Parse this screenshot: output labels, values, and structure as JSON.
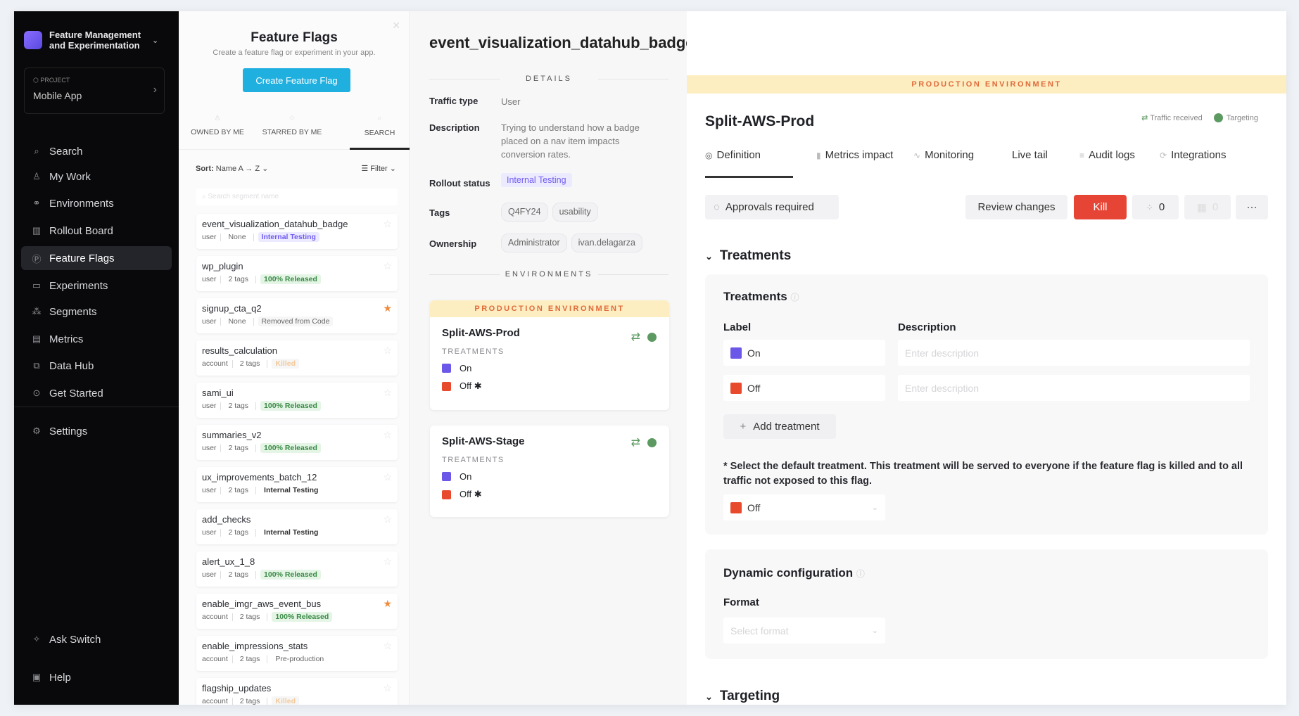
{
  "sidebar": {
    "app_name_line1": "Feature Management",
    "app_name_line2": "and Experimentation",
    "project_label": "PROJECT",
    "project_name": "Mobile App",
    "items": [
      {
        "label": "Search",
        "icon": "search-icon"
      },
      {
        "label": "My Work",
        "icon": "user-icon"
      },
      {
        "label": "Environments",
        "icon": "environments-icon"
      },
      {
        "label": "Rollout Board",
        "icon": "board-icon"
      },
      {
        "label": "Feature Flags",
        "icon": "flag-icon",
        "active": true
      },
      {
        "label": "Experiments",
        "icon": "experiments-icon"
      },
      {
        "label": "Segments",
        "icon": "segments-icon"
      },
      {
        "label": "Metrics",
        "icon": "metrics-icon"
      },
      {
        "label": "Data Hub",
        "icon": "data-hub-icon"
      },
      {
        "label": "Get Started",
        "icon": "play-icon"
      }
    ],
    "settings": "Settings",
    "ask": "Ask Switch",
    "help": "Help"
  },
  "flag_list": {
    "title": "Feature Flags",
    "subtitle": "Create a feature flag or experiment in your app.",
    "create_button": "Create Feature Flag",
    "tabs": [
      "OWNED BY ME",
      "STARRED BY ME",
      "SEARCH"
    ],
    "active_tab": "SEARCH",
    "sort_label": "Sort:",
    "sort_value": "Name  A → Z",
    "filter_label": "Filter",
    "search_placeholder": "Search segment name",
    "flags": [
      {
        "name": "event_visualization_datahub_badge",
        "traffic": "user",
        "tags": "None",
        "status": "Internal Testing",
        "style": "b-int",
        "starred": false
      },
      {
        "name": "wp_plugin",
        "traffic": "user",
        "tags": "2 tags",
        "status": "100% Released",
        "style": "b-rel",
        "starred": false
      },
      {
        "name": "signup_cta_q2",
        "traffic": "user",
        "tags": "None",
        "status": "Removed from Code",
        "style": "b-rem",
        "starred": true
      },
      {
        "name": "results_calculation",
        "traffic": "account",
        "tags": "2 tags",
        "status": "Killed",
        "style": "b-kil",
        "starred": false
      },
      {
        "name": "sami_ui",
        "traffic": "user",
        "tags": "2 tags",
        "status": "100% Released",
        "style": "b-rel",
        "starred": false
      },
      {
        "name": "summaries_v2",
        "traffic": "user",
        "tags": "2 tags",
        "status": "100% Released",
        "style": "b-rel",
        "starred": false
      },
      {
        "name": "ux_improvements_batch_12",
        "traffic": "user",
        "tags": "2 tags",
        "status": "Internal Testing",
        "style": "b-plain",
        "starred": false
      },
      {
        "name": "add_checks",
        "traffic": "user",
        "tags": "2 tags",
        "status": "Internal Testing",
        "style": "b-plain",
        "starred": false
      },
      {
        "name": "alert_ux_1_8",
        "traffic": "user",
        "tags": "2 tags",
        "status": "100% Released",
        "style": "b-rel",
        "starred": false
      },
      {
        "name": "enable_imgr_aws_event_bus",
        "traffic": "account",
        "tags": "2 tags",
        "status": "100% Released",
        "style": "b-rel",
        "starred": true
      },
      {
        "name": "enable_impressions_stats",
        "traffic": "account",
        "tags": "2 tags",
        "status": "Pre-production",
        "style": "b-pre",
        "starred": false
      },
      {
        "name": "flagship_updates",
        "traffic": "account",
        "tags": "2 tags",
        "status": "Killed",
        "style": "b-kil",
        "starred": false
      }
    ]
  },
  "details": {
    "flag_name": "event_visualization_datahub_badge",
    "section": "DETAILS",
    "traffic_type_label": "Traffic type",
    "traffic_type": "User",
    "description_label": "Description",
    "description": "Trying to understand how a badge placed on a nav item impacts conversion rates.",
    "rollout_label": "Rollout status",
    "rollout": "Internal Testing",
    "tags_label": "Tags",
    "tags": [
      "Q4FY24",
      "usability"
    ],
    "ownership_label": "Ownership",
    "owners": [
      "Administrator",
      "ivan.delagarza"
    ],
    "env_section": "ENVIRONMENTS",
    "prod_banner": "PRODUCTION ENVIRONMENT",
    "environments": [
      {
        "name": "Split-AWS-Prod",
        "treatments_label": "TREATMENTS",
        "on": "On",
        "off": "Off ✱"
      },
      {
        "name": "Split-AWS-Stage",
        "treatments_label": "TREATMENTS",
        "on": "On",
        "off": "Off ✱"
      }
    ]
  },
  "env_panel": {
    "banner": "PRODUCTION ENVIRONMENT",
    "name": "Split-AWS-Prod",
    "traffic": "Traffic received",
    "targeting": "Targeting",
    "tabs": [
      "Definition",
      "Metrics impact",
      "Monitoring",
      "Live tail",
      "Audit logs",
      "Integrations"
    ],
    "active_tab": "Definition",
    "approvals": "Approvals required",
    "review": "Review changes",
    "kill": "Kill",
    "count1": "0",
    "count2": "0",
    "treatments_header": "Treatments",
    "treatments_title": "Treatments",
    "label_col": "Label",
    "desc_col": "Description",
    "rows": [
      {
        "label": "On",
        "placeholder": "Enter description"
      },
      {
        "label": "Off",
        "placeholder": "Enter description"
      }
    ],
    "add_treatment": "Add treatment",
    "note": "* Select the default treatment. This treatment will be served to everyone if the feature flag is killed and to all traffic not exposed to this flag.",
    "default": "Off",
    "dynamic_title": "Dynamic configuration",
    "format_label": "Format",
    "format_placeholder": "Select format"
  },
  "colors": {
    "accent": "#1fb0e0",
    "kill": "#e64535",
    "on": "#6b57e8",
    "off": "#e84a2e",
    "active_green": "#5c9a62",
    "prod_banner": "#fdeec2"
  }
}
